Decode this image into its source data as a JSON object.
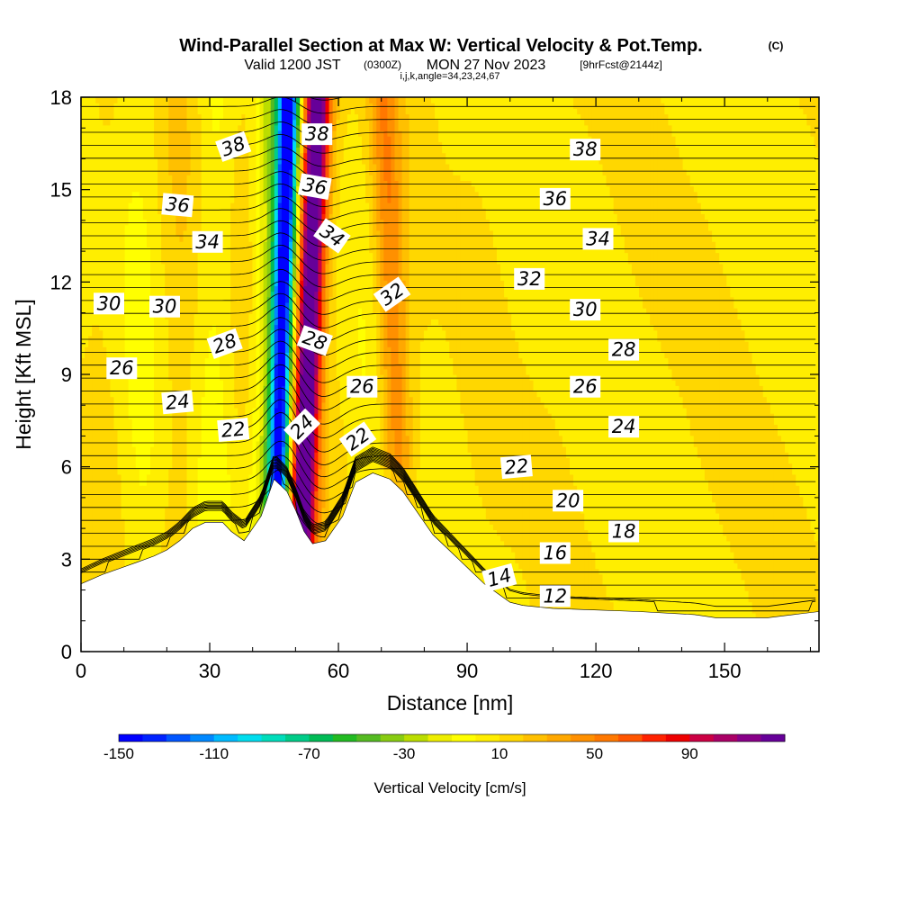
{
  "title": {
    "main": "Wind-Parallel Section at Max W: Vertical Velocity & Pot.Temp.",
    "copyright": "(C)",
    "valid_prefix": "Valid 1200 JST",
    "valid_zulu": "(0300Z)",
    "valid_date": "MON 27 Nov 2023",
    "forecast": "[9hrFcst@2144z]",
    "indices": "i,j,k,angle=34,23,24,67"
  },
  "chart_data": {
    "type": "contour",
    "xlabel": "Distance [nm]",
    "ylabel": "Height [Kft MSL]",
    "xlim": [
      0,
      172
    ],
    "ylim": [
      0,
      18
    ],
    "x_ticks": [
      0,
      30,
      60,
      90,
      120,
      150
    ],
    "y_ticks": [
      0,
      3,
      6,
      9,
      12,
      15,
      18
    ],
    "fill_variable": "Vertical Velocity",
    "contour_variable": "Potential Temperature",
    "colorbar": {
      "label": "Vertical Velocity [cm/s]",
      "tick_labels": [
        "-150",
        "-110",
        "-70",
        "-30",
        "10",
        "50",
        "90"
      ],
      "levels_start": -150,
      "level_step": 10,
      "colors": [
        "#0000ff",
        "#0022ff",
        "#0055ff",
        "#0088ff",
        "#00bbff",
        "#00ddee",
        "#00ddbb",
        "#00cc88",
        "#00bb55",
        "#22bb22",
        "#55bb22",
        "#88cc11",
        "#bbdd00",
        "#eeee00",
        "#ffff00",
        "#ffee00",
        "#ffd700",
        "#ffc000",
        "#ffa800",
        "#ff9000",
        "#ff7800",
        "#ff5500",
        "#ff2200",
        "#ee0000",
        "#cc0044",
        "#aa0066",
        "#880088",
        "#660099"
      ]
    },
    "terrain": [
      [
        0,
        2.2
      ],
      [
        5,
        2.5
      ],
      [
        9,
        2.7
      ],
      [
        13,
        2.9
      ],
      [
        17,
        3.1
      ],
      [
        20,
        3.3
      ],
      [
        23,
        3.6
      ],
      [
        26,
        4.0
      ],
      [
        29,
        4.2
      ],
      [
        33,
        4.2
      ],
      [
        35,
        3.9
      ],
      [
        38,
        3.6
      ],
      [
        42,
        4.4
      ],
      [
        45,
        5.6
      ],
      [
        48,
        5.2
      ],
      [
        50,
        4.6
      ],
      [
        52,
        3.9
      ],
      [
        54,
        3.5
      ],
      [
        57,
        3.6
      ],
      [
        61,
        4.4
      ],
      [
        64,
        5.5
      ],
      [
        68,
        5.8
      ],
      [
        72,
        5.6
      ],
      [
        75,
        5.2
      ],
      [
        78,
        4.6
      ],
      [
        82,
        3.8
      ],
      [
        85,
        3.4
      ],
      [
        88,
        3.0
      ],
      [
        91,
        2.6
      ],
      [
        94,
        2.2
      ],
      [
        97,
        1.9
      ],
      [
        100,
        1.6
      ],
      [
        103,
        1.5
      ],
      [
        110,
        1.4
      ],
      [
        130,
        1.3
      ],
      [
        143,
        1.2
      ],
      [
        148,
        1.1
      ],
      [
        155,
        1.1
      ],
      [
        160,
        1.1
      ],
      [
        166,
        1.2
      ],
      [
        172,
        1.3
      ]
    ],
    "wave_updraft_x": 52,
    "wave_downdraft_x": 46,
    "secondary_updraft_x": 74,
    "contour_labels": [
      {
        "value": "38",
        "x": 35.5,
        "y": 16.4,
        "angle": -20
      },
      {
        "value": "38",
        "x": 55.0,
        "y": 16.8,
        "angle": 0
      },
      {
        "value": "38",
        "x": 117.5,
        "y": 16.3,
        "angle": 0
      },
      {
        "value": "36",
        "x": 22.5,
        "y": 14.5,
        "angle": 5
      },
      {
        "value": "36",
        "x": 54.5,
        "y": 15.1,
        "angle": 10
      },
      {
        "value": "36",
        "x": 110.5,
        "y": 14.7,
        "angle": 0
      },
      {
        "value": "34",
        "x": 29.5,
        "y": 13.3,
        "angle": 0
      },
      {
        "value": "34",
        "x": 58.5,
        "y": 13.5,
        "angle": 35
      },
      {
        "value": "34",
        "x": 120.5,
        "y": 13.4,
        "angle": 0
      },
      {
        "value": "32",
        "x": 104.5,
        "y": 12.1,
        "angle": 0
      },
      {
        "value": "32",
        "x": 72.5,
        "y": 11.6,
        "angle": -35
      },
      {
        "value": "30",
        "x": 6.5,
        "y": 11.3,
        "angle": 0
      },
      {
        "value": "30",
        "x": 19.5,
        "y": 11.2,
        "angle": 0
      },
      {
        "value": "30",
        "x": 117.5,
        "y": 11.1,
        "angle": 0
      },
      {
        "value": "28",
        "x": 33.5,
        "y": 10.0,
        "angle": -20
      },
      {
        "value": "28",
        "x": 54.5,
        "y": 10.1,
        "angle": 20
      },
      {
        "value": "28",
        "x": 126.5,
        "y": 9.8,
        "angle": 0
      },
      {
        "value": "26",
        "x": 9.5,
        "y": 9.2,
        "angle": 0
      },
      {
        "value": "26",
        "x": 65.5,
        "y": 8.6,
        "angle": 0
      },
      {
        "value": "26",
        "x": 117.5,
        "y": 8.6,
        "angle": 0
      },
      {
        "value": "24",
        "x": 22.5,
        "y": 8.1,
        "angle": -5
      },
      {
        "value": "24",
        "x": 51.5,
        "y": 7.3,
        "angle": -45
      },
      {
        "value": "24",
        "x": 126.5,
        "y": 7.3,
        "angle": 0
      },
      {
        "value": "22",
        "x": 35.5,
        "y": 7.2,
        "angle": -5
      },
      {
        "value": "22",
        "x": 64.5,
        "y": 6.9,
        "angle": -35
      },
      {
        "value": "22",
        "x": 101.5,
        "y": 6.0,
        "angle": -5
      },
      {
        "value": "20",
        "x": 113.5,
        "y": 4.9,
        "angle": 0
      },
      {
        "value": "18",
        "x": 126.5,
        "y": 3.9,
        "angle": 0
      },
      {
        "value": "16",
        "x": 110.5,
        "y": 3.2,
        "angle": 0
      },
      {
        "value": "14",
        "x": 97.5,
        "y": 2.4,
        "angle": -15
      },
      {
        "value": "12",
        "x": 110.5,
        "y": 1.8,
        "angle": 0
      }
    ]
  }
}
